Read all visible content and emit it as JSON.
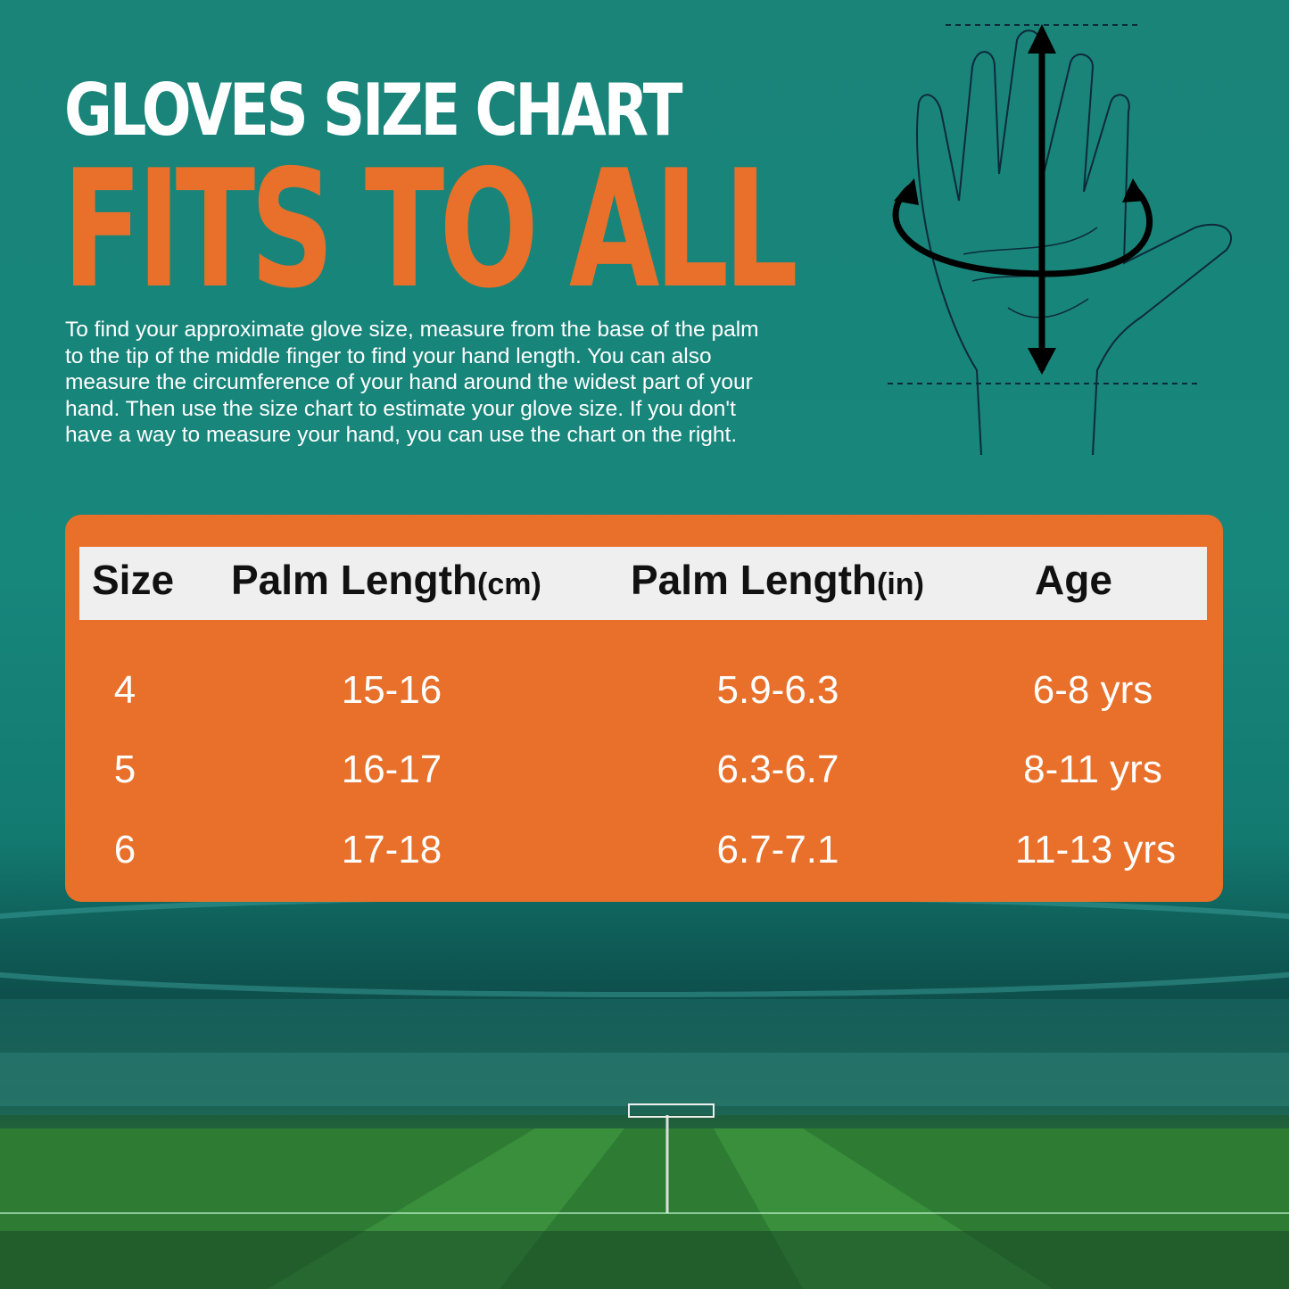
{
  "header": {
    "title": "GLOVES SIZE CHART",
    "subtitle": "FITS TO ALL",
    "description_lines": [
      "To find your approximate glove size, measure from the base of the palm",
      "to the tip of the middle finger to find your hand length. You can also",
      "measure the circumference of your hand around the widest part of your",
      "hand. Then use the size chart to estimate your glove size. If you don't",
      "have a way to measure your hand, you can use the chart on the right."
    ]
  },
  "illustration": {
    "icon": "hand-measurement-icon"
  },
  "table": {
    "columns": [
      {
        "label": "Size",
        "unit": ""
      },
      {
        "label": "Palm Length",
        "unit": "(cm)"
      },
      {
        "label": "Palm Length",
        "unit": "(in)"
      },
      {
        "label": "Age",
        "unit": ""
      }
    ],
    "rows": [
      [
        "4",
        "15-16",
        "5.9-6.3",
        "6-8 yrs"
      ],
      [
        "5",
        "16-17",
        "6.3-6.7",
        "8-11 yrs"
      ],
      [
        "6",
        "17-18",
        "6.7-7.1",
        "11-13 yrs"
      ]
    ]
  },
  "colors": {
    "background": "#1a8479",
    "accent": "#e8702a",
    "header_bar": "#efefef"
  }
}
